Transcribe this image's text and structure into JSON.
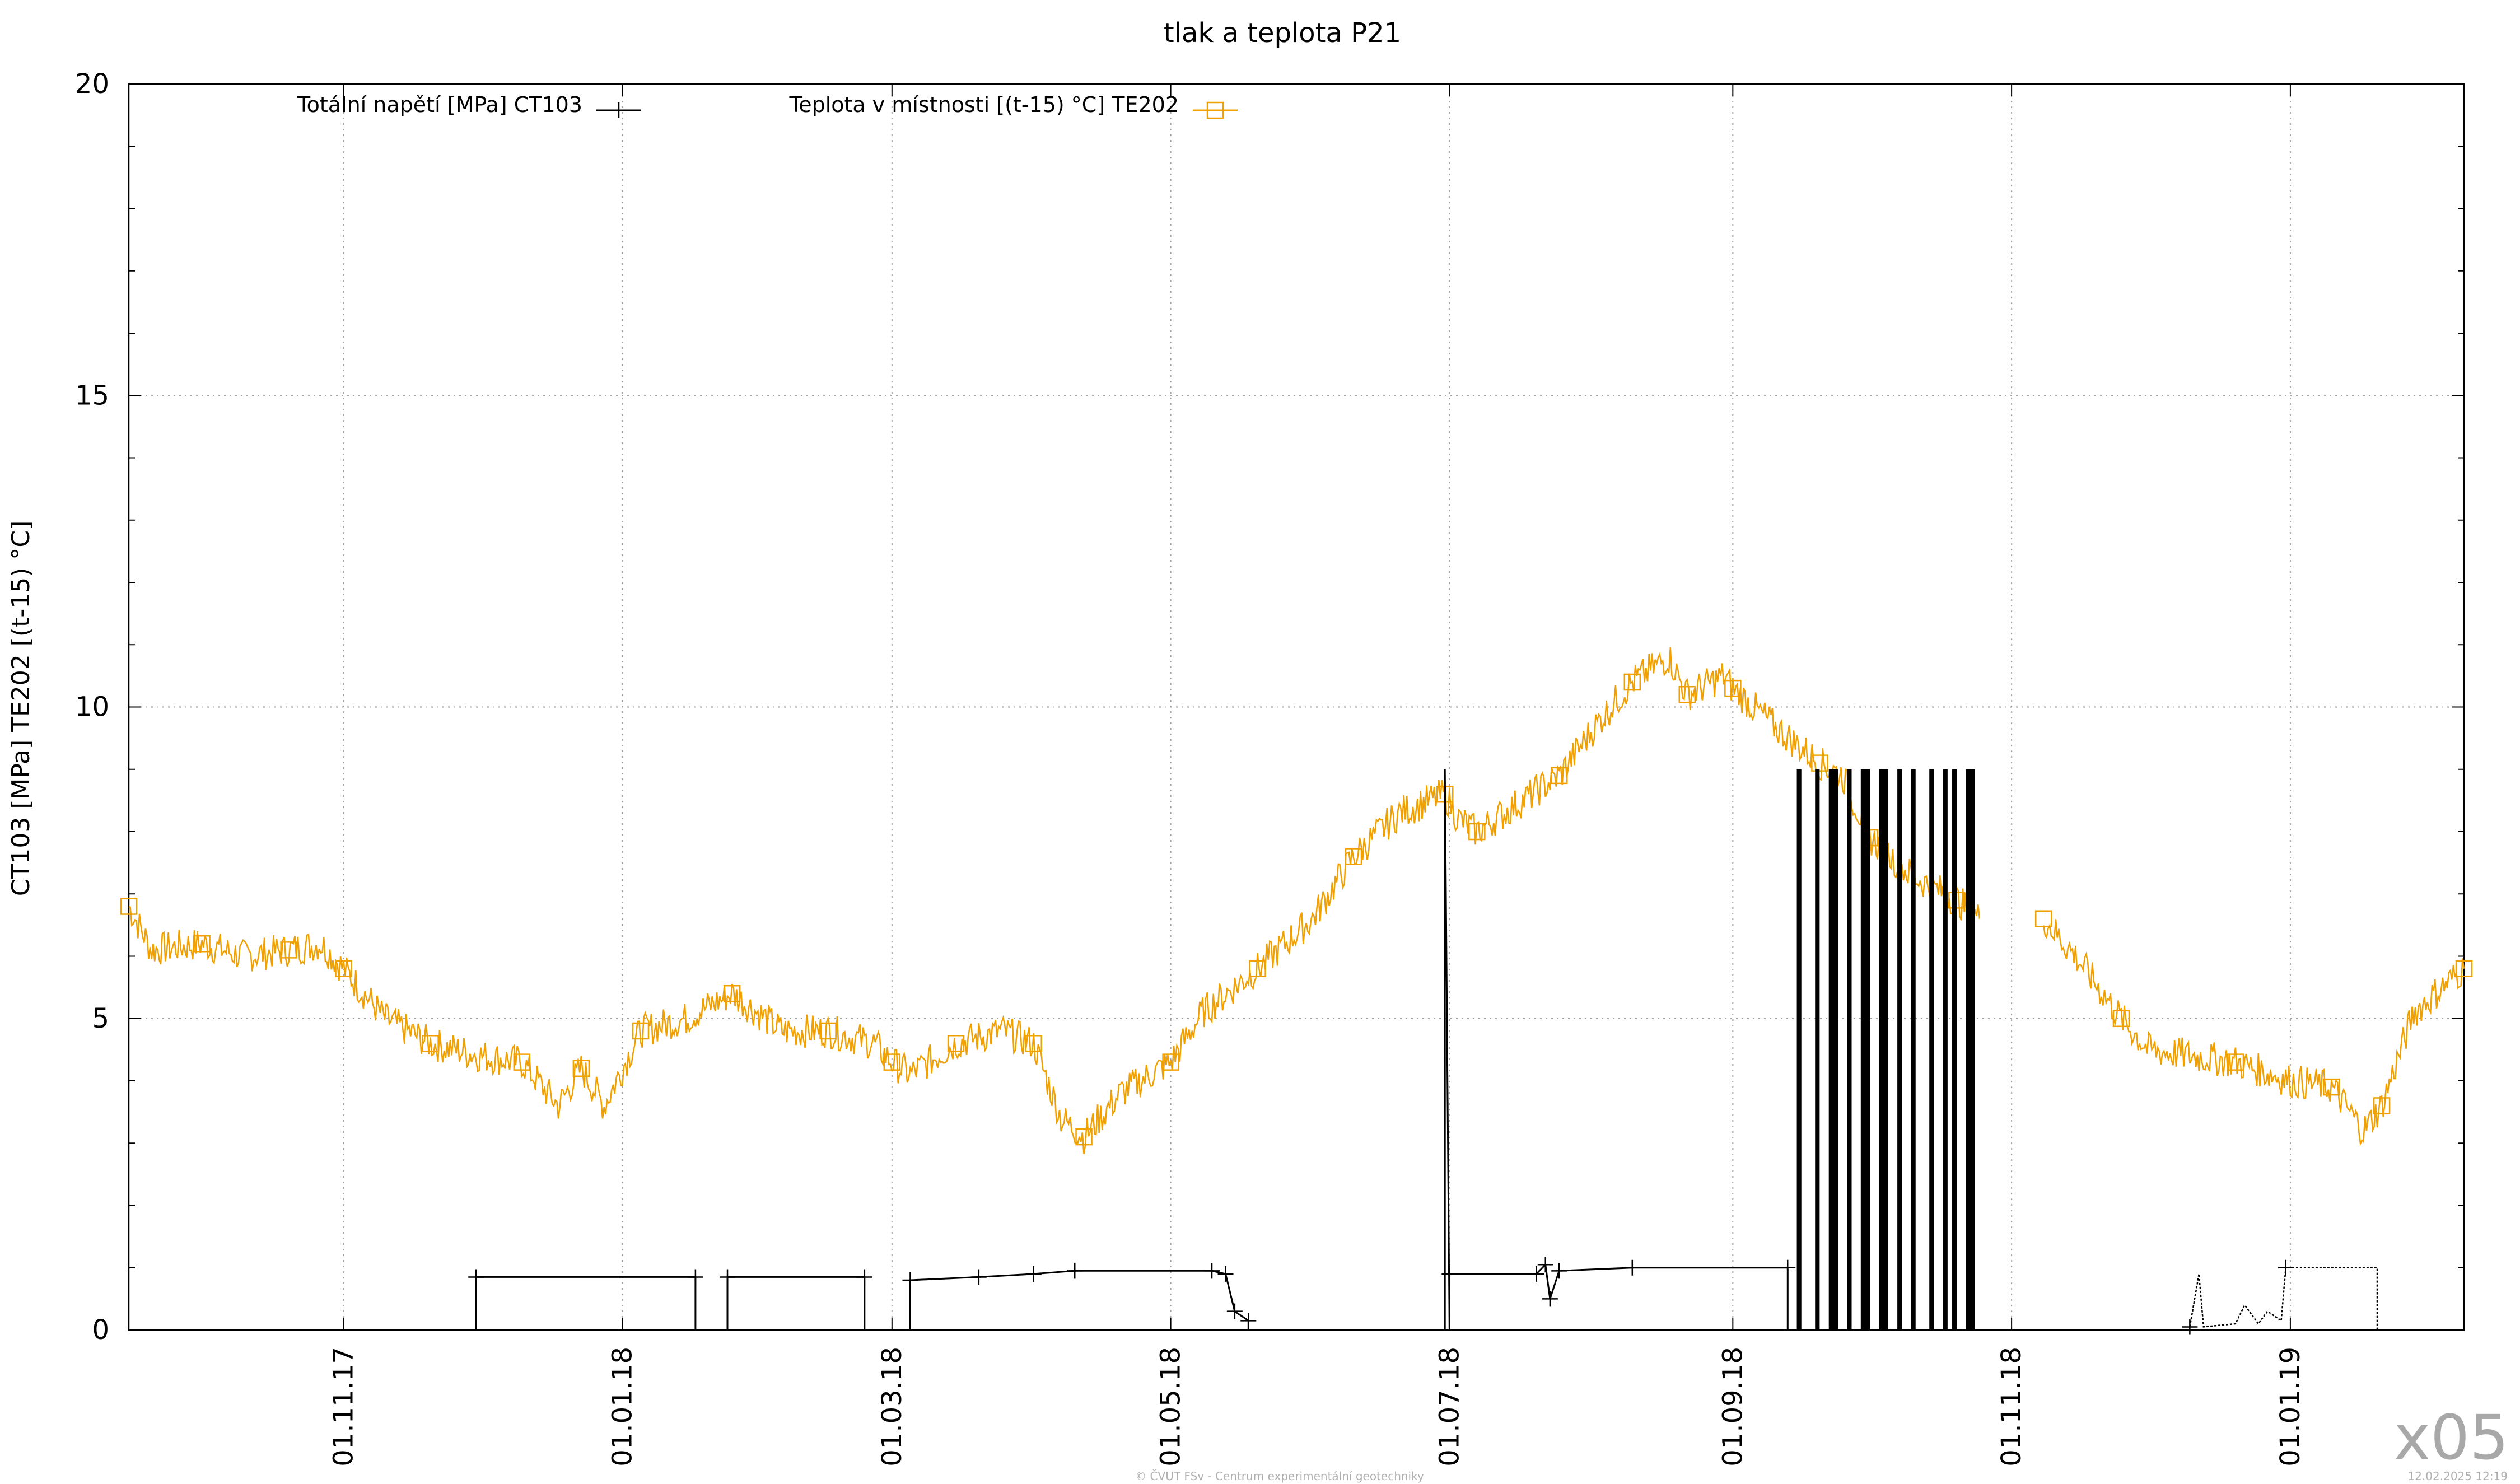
{
  "chart_data": {
    "type": "line",
    "title": "tlak a teplota P21",
    "ylabel": "CT103 [MPa] TE202 [(t-15) °C]",
    "xlabel": "",
    "ylim": [
      0,
      20
    ],
    "y_ticks": [
      "0",
      "5",
      "10",
      "15",
      "20"
    ],
    "x_range": [
      "2017-09-15",
      "2019-02-08"
    ],
    "x_ticks": [
      {
        "date": "2017-11-01",
        "label": "01.11.17"
      },
      {
        "date": "2018-01-01",
        "label": "01.01.18"
      },
      {
        "date": "2018-03-01",
        "label": "01.03.18"
      },
      {
        "date": "2018-05-01",
        "label": "01.05.18"
      },
      {
        "date": "2018-07-01",
        "label": "01.07.18"
      },
      {
        "date": "2018-09-01",
        "label": "01.09.18"
      },
      {
        "date": "2018-11-01",
        "label": "01.11.18"
      },
      {
        "date": "2019-01-01",
        "label": "01.01.19"
      }
    ],
    "grid": true,
    "legend_position": "top",
    "series": [
      {
        "name": "Totální napětí [MPa] CT103",
        "color": "#000000",
        "marker": "plus",
        "segments": [
          [
            [
              "2017-09-15",
              null
            ]
          ],
          [
            [
              "2017-11-30",
              0.0
            ],
            [
              "2017-11-30",
              0.85
            ],
            [
              "2018-01-17",
              0.85
            ],
            [
              "2018-01-17",
              0.0
            ]
          ],
          [
            [
              "2018-01-24",
              0.0
            ],
            [
              "2018-01-24",
              0.85
            ],
            [
              "2018-02-23",
              0.85
            ],
            [
              "2018-02-23",
              0.0
            ]
          ],
          [
            [
              "2018-03-05",
              0.0
            ],
            [
              "2018-03-05",
              0.8
            ],
            [
              "2018-03-20",
              0.85
            ],
            [
              "2018-04-01",
              0.9
            ],
            [
              "2018-04-10",
              0.95
            ],
            [
              "2018-05-10",
              0.95
            ],
            [
              "2018-05-13",
              0.9
            ],
            [
              "2018-05-15",
              0.3
            ],
            [
              "2018-05-18",
              0.15
            ],
            [
              "2018-05-18",
              0.0
            ]
          ],
          [
            [
              "2018-06-30",
              0.0
            ],
            [
              "2018-06-30",
              9.0
            ],
            [
              "2018-07-01",
              0.0
            ]
          ],
          [
            [
              "2018-07-01",
              0.0
            ],
            [
              "2018-07-01",
              0.9
            ],
            [
              "2018-07-20",
              0.9
            ],
            [
              "2018-07-22",
              1.05
            ],
            [
              "2018-07-23",
              0.5
            ],
            [
              "2018-07-25",
              0.95
            ],
            [
              "2018-08-10",
              1.0
            ],
            [
              "2018-09-13",
              1.0
            ],
            [
              "2018-09-13",
              0.0
            ]
          ]
        ],
        "bursts": [
          [
            "2018-09-15",
            "2018-09-16"
          ],
          [
            "2018-09-19",
            "2018-09-20"
          ],
          [
            "2018-09-22",
            "2018-09-24"
          ],
          [
            "2018-09-26",
            "2018-09-27"
          ],
          [
            "2018-09-29",
            "2018-10-01"
          ],
          [
            "2018-10-03",
            "2018-10-05"
          ],
          [
            "2018-10-07",
            "2018-10-08"
          ],
          [
            "2018-10-10",
            "2018-10-11"
          ],
          [
            "2018-10-14",
            "2018-10-15"
          ],
          [
            "2018-10-17",
            "2018-10-18"
          ],
          [
            "2018-10-19",
            "2018-10-20"
          ],
          [
            "2018-10-22",
            "2018-10-24"
          ]
        ],
        "burst_top": 9.0,
        "tail": [
          [
            "2018-12-10",
            0.05
          ],
          [
            "2018-12-12",
            0.9
          ],
          [
            "2018-12-13",
            0.05
          ],
          [
            "2018-12-20",
            0.1
          ],
          [
            "2018-12-22",
            0.4
          ],
          [
            "2018-12-25",
            0.1
          ],
          [
            "2018-12-27",
            0.3
          ],
          [
            "2018-12-30",
            0.15
          ],
          [
            "2018-12-31",
            1.0
          ],
          [
            "2019-01-20",
            1.0
          ],
          [
            "2019-01-20",
            0.0
          ]
        ]
      },
      {
        "name": "Teplota v místnosti [(t-15) °C] TE202",
        "color": "#f0a000",
        "marker": "square",
        "anchors": [
          [
            "2017-09-15",
            6.8
          ],
          [
            "2017-09-20",
            6.1
          ],
          [
            "2017-10-01",
            6.2
          ],
          [
            "2017-10-10",
            6.0
          ],
          [
            "2017-10-20",
            6.1
          ],
          [
            "2017-10-27",
            6.2
          ],
          [
            "2017-11-01",
            5.8
          ],
          [
            "2017-11-10",
            5.0
          ],
          [
            "2017-11-20",
            4.6
          ],
          [
            "2017-12-01",
            4.4
          ],
          [
            "2017-12-10",
            4.3
          ],
          [
            "2017-12-18",
            3.6
          ],
          [
            "2017-12-23",
            4.2
          ],
          [
            "2017-12-28",
            3.6
          ],
          [
            "2018-01-05",
            4.8
          ],
          [
            "2018-01-15",
            5.0
          ],
          [
            "2018-01-25",
            5.4
          ],
          [
            "2018-02-05",
            4.8
          ],
          [
            "2018-02-15",
            4.8
          ],
          [
            "2018-02-25",
            4.6
          ],
          [
            "2018-03-01",
            4.3
          ],
          [
            "2018-03-05",
            4.1
          ],
          [
            "2018-03-15",
            4.6
          ],
          [
            "2018-03-25",
            4.8
          ],
          [
            "2018-04-01",
            4.6
          ],
          [
            "2018-04-07",
            3.4
          ],
          [
            "2018-04-12",
            3.1
          ],
          [
            "2018-04-20",
            3.8
          ],
          [
            "2018-05-01",
            4.3
          ],
          [
            "2018-05-08",
            5.1
          ],
          [
            "2018-05-20",
            5.8
          ],
          [
            "2018-06-01",
            6.6
          ],
          [
            "2018-06-10",
            7.6
          ],
          [
            "2018-06-20",
            8.3
          ],
          [
            "2018-06-30",
            8.6
          ],
          [
            "2018-07-03",
            8.2
          ],
          [
            "2018-07-07",
            8.0
          ],
          [
            "2018-07-15",
            8.4
          ],
          [
            "2018-07-25",
            8.9
          ],
          [
            "2018-08-03",
            9.8
          ],
          [
            "2018-08-10",
            10.4
          ],
          [
            "2018-08-18",
            10.8
          ],
          [
            "2018-08-22",
            10.2
          ],
          [
            "2018-08-30",
            10.5
          ],
          [
            "2018-09-01",
            10.3
          ],
          [
            "2018-09-10",
            9.7
          ],
          [
            "2018-09-20",
            9.1
          ],
          [
            "2018-09-25",
            8.9
          ],
          [
            "2018-10-01",
            7.9
          ],
          [
            "2018-10-10",
            7.3
          ],
          [
            "2018-10-20",
            6.9
          ],
          [
            "2018-10-25",
            6.6
          ],
          null,
          [
            "2018-11-08",
            6.6
          ],
          [
            "2018-11-15",
            6.0
          ],
          [
            "2018-11-25",
            5.0
          ],
          [
            "2018-12-01",
            4.5
          ],
          [
            "2018-12-20",
            4.3
          ],
          [
            "2019-01-01",
            4.0
          ],
          [
            "2019-01-10",
            3.9
          ],
          [
            "2019-01-17",
            3.2
          ],
          [
            "2019-01-21",
            3.6
          ],
          [
            "2019-01-28",
            5.1
          ],
          [
            "2019-02-08",
            5.8
          ]
        ]
      }
    ]
  },
  "footer": {
    "copyright": "© ČVUT FSv - Centrum experimentální geotechniky",
    "timestamp": "12.02.2025 12:19",
    "watermark": "x05"
  }
}
